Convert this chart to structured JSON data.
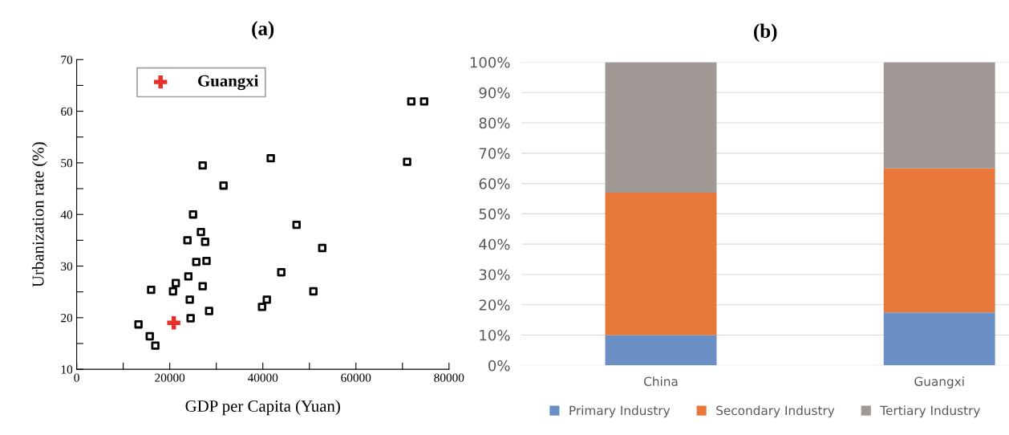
{
  "chart_data": [
    {
      "type": "scatter",
      "title": "(a)",
      "xlabel": "GDP per Capita (Yuan)",
      "ylabel": "Urbanization rate (%)",
      "xlim": [
        0,
        80000
      ],
      "ylim": [
        10,
        70
      ],
      "xticks": [
        0,
        {
          "value": 10000,
          "label": null
        },
        20000,
        {
          "value": 30000,
          "label": null
        },
        40000,
        {
          "value": 50000,
          "label": null
        },
        60000,
        {
          "value": 70000,
          "label": null
        },
        80000
      ],
      "yticks": [
        10,
        {
          "value": 15,
          "label": null
        },
        20,
        {
          "value": 25,
          "label": null
        },
        30,
        {
          "value": 35,
          "label": null
        },
        40,
        {
          "value": 45,
          "label": null
        },
        50,
        {
          "value": 55,
          "label": null
        },
        60,
        {
          "value": 65,
          "label": null
        },
        70
      ],
      "grid": false,
      "legend": "top left",
      "series": [
        {
          "color": "#000000",
          "marker": "square",
          "x": [
            71900,
            74650,
            71000,
            41700,
            27070,
            31550,
            25000,
            47240,
            26700,
            23800,
            27600,
            52760,
            25700,
            27900,
            43960,
            24000,
            21300,
            16000,
            20700,
            27070,
            50860,
            24300,
            40860,
            39830,
            28450,
            24480,
            13280,
            15700,
            16900
          ],
          "values": [
            61.9,
            61.9,
            50.2,
            50.9,
            49.5,
            45.6,
            40.0,
            38.0,
            36.6,
            35.0,
            34.7,
            33.5,
            30.8,
            31.0,
            28.8,
            28.0,
            26.7,
            25.4,
            25.1,
            26.1,
            25.1,
            23.5,
            23.5,
            22.1,
            21.3,
            19.9,
            18.7,
            16.4,
            14.6
          ]
        },
        {
          "name": "Guangxi",
          "color": "#e8302a",
          "marker": "cross",
          "x": [
            20860
          ],
          "values": [
            19.0
          ]
        }
      ]
    },
    {
      "type": "bar",
      "title": "(b)",
      "stacked": true,
      "categories": [
        "China",
        "Guangxi"
      ],
      "ylim": [
        0,
        100
      ],
      "yticks": [
        {
          "value": 0,
          "label": "0%"
        },
        {
          "value": 10,
          "label": "10%"
        },
        {
          "value": 20,
          "label": "20%"
        },
        {
          "value": 30,
          "label": "30%"
        },
        {
          "value": 40,
          "label": "40%"
        },
        {
          "value": 50,
          "label": "50%"
        },
        {
          "value": 60,
          "label": "60%"
        },
        {
          "value": 70,
          "label": "70%"
        },
        {
          "value": 80,
          "label": "80%"
        },
        {
          "value": 90,
          "label": "90%"
        },
        {
          "value": 100,
          "label": "100%"
        }
      ],
      "grid": "y",
      "legend": "bottom",
      "series": [
        {
          "name": "Primary Industry",
          "color": "#6a8fc4",
          "values": [
            10,
            17.5
          ]
        },
        {
          "name": "Secondary Industry",
          "color": "#e8773a",
          "values": [
            47,
            47.5
          ]
        },
        {
          "name": "Tertiary Industry",
          "color": "#a09894",
          "values": [
            43,
            35
          ]
        }
      ]
    }
  ]
}
